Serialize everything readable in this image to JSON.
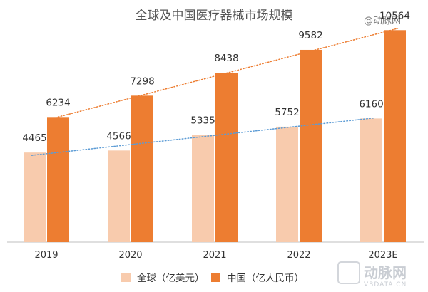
{
  "chart_data": {
    "type": "bar",
    "title": "全球及中国医疗器械市场规模",
    "categories": [
      "2019",
      "2020",
      "2021",
      "2022",
      "2023E"
    ],
    "series": [
      {
        "name": "全球（亿美元）",
        "values": [
          4465,
          4566,
          5335,
          5752,
          6160
        ],
        "color": "#f8cbad"
      },
      {
        "name": "中国（亿人民币）",
        "values": [
          6234,
          7298,
          8438,
          9582,
          10564
        ],
        "color": "#ed7d31"
      }
    ],
    "data_labels": {
      "global": [
        "4465",
        "4566",
        "5335",
        "5752",
        "6160"
      ],
      "china": [
        "6234",
        "7298",
        "8438",
        "9582",
        "10564"
      ]
    },
    "trendlines": [
      {
        "series": "全球（亿美元）",
        "style": "dotted",
        "color": "#5b9bd5"
      },
      {
        "series": "中国（亿人民币）",
        "style": "dotted",
        "color": "#ed7d31"
      }
    ],
    "ylim": [
      0,
      11000
    ],
    "grid": false,
    "legend_position": "bottom"
  },
  "watermark": {
    "top_text": "@动脉网",
    "logo_text": "动脉网",
    "logo_sub": "VBDATA.CN"
  }
}
